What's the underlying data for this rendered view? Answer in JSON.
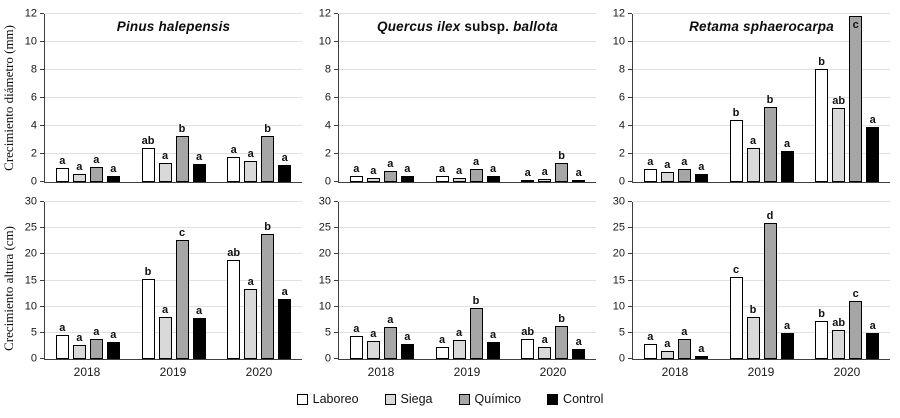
{
  "figure": {
    "rows": [
      {
        "ylabel": "Crecimiento diámetro (mm)"
      },
      {
        "ylabel": "Crecimiento altura (cm)"
      }
    ],
    "legend": [
      {
        "label": "Laboreo",
        "color": "#ffffff"
      },
      {
        "label": "Siega",
        "color": "#d9d9d9"
      },
      {
        "label": "Químico",
        "color": "#a6a6a6"
      },
      {
        "label": "Control",
        "color": "#000000"
      }
    ],
    "colors": {
      "axis": "#3f3f3f",
      "gridline": "#e0e0e0",
      "bar_border": "#000000",
      "text": "#111111"
    },
    "legend_position": "bottom-center",
    "grid": "horizontal-on"
  },
  "chart_data": [
    {
      "type": "bar",
      "row": 0,
      "col": 0,
      "title_parts": [
        {
          "text": "Pinus halepensis",
          "italic": true
        }
      ],
      "ylabel": "Crecimiento diámetro (mm)",
      "ylim": [
        0,
        12
      ],
      "yticks": [
        0,
        2,
        4,
        6,
        8,
        10,
        12
      ],
      "categories": [
        "2018",
        "2019",
        "2020"
      ],
      "series": [
        {
          "name": "Laboreo",
          "values": [
            1.0,
            2.4,
            1.75
          ],
          "letters": [
            "a",
            "ab",
            "a"
          ]
        },
        {
          "name": "Siega",
          "values": [
            0.6,
            1.35,
            1.5
          ],
          "letters": [
            "a",
            "a",
            "a"
          ]
        },
        {
          "name": "Químico",
          "values": [
            1.05,
            3.3,
            3.25
          ],
          "letters": [
            "a",
            "b",
            "b"
          ]
        },
        {
          "name": "Control",
          "values": [
            0.45,
            1.3,
            1.2
          ],
          "letters": [
            "a",
            "a",
            "a"
          ]
        }
      ]
    },
    {
      "type": "bar",
      "row": 0,
      "col": 1,
      "title_parts": [
        {
          "text": "Quercus ilex",
          "italic": true
        },
        {
          "text": " subsp. ",
          "italic": false
        },
        {
          "text": "ballota",
          "italic": true
        }
      ],
      "ylabel": "Crecimiento diámetro (mm)",
      "ylim": [
        0,
        12
      ],
      "yticks": [
        0,
        2,
        4,
        6,
        8,
        10,
        12
      ],
      "categories": [
        "2018",
        "2019",
        "2020"
      ],
      "series": [
        {
          "name": "Laboreo",
          "values": [
            0.45,
            0.45,
            0.15
          ],
          "letters": [
            "a",
            "a",
            "a"
          ]
        },
        {
          "name": "Siega",
          "values": [
            0.3,
            0.3,
            0.2
          ],
          "letters": [
            "a",
            "a",
            "a"
          ]
        },
        {
          "name": "Químico",
          "values": [
            0.75,
            0.95,
            1.35
          ],
          "letters": [
            "a",
            "a",
            "b"
          ]
        },
        {
          "name": "Control",
          "values": [
            0.4,
            0.45,
            0.1
          ],
          "letters": [
            "a",
            "a",
            "a"
          ]
        }
      ]
    },
    {
      "type": "bar",
      "row": 0,
      "col": 2,
      "title_parts": [
        {
          "text": "Retama sphaerocarpa",
          "italic": true
        }
      ],
      "ylabel": "Crecimiento diámetro (mm)",
      "ylim": [
        0,
        12
      ],
      "yticks": [
        0,
        2,
        4,
        6,
        8,
        10,
        12
      ],
      "categories": [
        "2018",
        "2019",
        "2020"
      ],
      "series": [
        {
          "name": "Laboreo",
          "values": [
            0.9,
            4.4,
            8.05
          ],
          "letters": [
            "a",
            "b",
            "b"
          ]
        },
        {
          "name": "Siega",
          "values": [
            0.7,
            2.45,
            5.3
          ],
          "letters": [
            "a",
            "a",
            "ab"
          ]
        },
        {
          "name": "Químico",
          "values": [
            0.9,
            5.35,
            11.85
          ],
          "letters": [
            "a",
            "b",
            "c"
          ]
        },
        {
          "name": "Control",
          "values": [
            0.55,
            2.2,
            3.9
          ],
          "letters": [
            "a",
            "a",
            "a"
          ]
        }
      ]
    },
    {
      "type": "bar",
      "row": 1,
      "col": 0,
      "ylabel": "Crecimiento altura (cm)",
      "ylim": [
        0,
        30
      ],
      "yticks": [
        0,
        5,
        10,
        15,
        20,
        25,
        30
      ],
      "categories": [
        "2018",
        "2019",
        "2020"
      ],
      "series": [
        {
          "name": "Laboreo",
          "values": [
            4.6,
            15.2,
            19.0
          ],
          "letters": [
            "a",
            "b",
            "ab"
          ]
        },
        {
          "name": "Siega",
          "values": [
            2.6,
            8.0,
            13.4
          ],
          "letters": [
            "a",
            "a",
            "a"
          ]
        },
        {
          "name": "Químico",
          "values": [
            3.9,
            22.7,
            23.9
          ],
          "letters": [
            "a",
            "c",
            "b"
          ]
        },
        {
          "name": "Control",
          "values": [
            3.3,
            7.9,
            11.5
          ],
          "letters": [
            "a",
            "a",
            "a"
          ]
        }
      ]
    },
    {
      "type": "bar",
      "row": 1,
      "col": 1,
      "ylabel": "Crecimiento altura (cm)",
      "ylim": [
        0,
        30
      ],
      "yticks": [
        0,
        5,
        10,
        15,
        20,
        25,
        30
      ],
      "categories": [
        "2018",
        "2019",
        "2020"
      ],
      "series": [
        {
          "name": "Laboreo",
          "values": [
            4.4,
            2.2,
            3.9
          ],
          "letters": [
            "a",
            "a",
            "ab"
          ]
        },
        {
          "name": "Siega",
          "values": [
            3.5,
            3.6,
            2.3
          ],
          "letters": [
            "a",
            "a",
            "a"
          ]
        },
        {
          "name": "Químico",
          "values": [
            6.1,
            9.8,
            6.3
          ],
          "letters": [
            "a",
            "b",
            "b"
          ]
        },
        {
          "name": "Control",
          "values": [
            2.9,
            3.2,
            2.0
          ],
          "letters": [
            "a",
            "a",
            "a"
          ]
        }
      ]
    },
    {
      "type": "bar",
      "row": 1,
      "col": 2,
      "ylabel": "Crecimiento altura (cm)",
      "ylim": [
        0,
        30
      ],
      "yticks": [
        0,
        5,
        10,
        15,
        20,
        25,
        30
      ],
      "categories": [
        "2018",
        "2019",
        "2020"
      ],
      "series": [
        {
          "name": "Laboreo",
          "values": [
            2.9,
            15.7,
            7.3
          ],
          "letters": [
            "a",
            "c",
            "b"
          ]
        },
        {
          "name": "Siega",
          "values": [
            1.5,
            8.0,
            5.6
          ],
          "letters": [
            "a",
            "b",
            "ab"
          ]
        },
        {
          "name": "Químico",
          "values": [
            3.9,
            25.9,
            11.0
          ],
          "letters": [
            "a",
            "d",
            "c"
          ]
        },
        {
          "name": "Control",
          "values": [
            0.6,
            5.0,
            4.9
          ],
          "letters": [
            "a",
            "a",
            "a"
          ]
        }
      ]
    }
  ]
}
